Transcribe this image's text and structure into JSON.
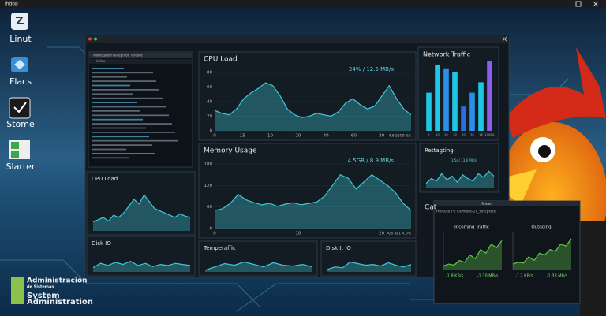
{
  "topbar": {
    "title": "lhdop"
  },
  "desktop_icons": [
    "Linut",
    "Flacs",
    "Stome",
    "Slarter"
  ],
  "watermark": [
    "Administración",
    "de Sistemas",
    "System",
    "Administration"
  ],
  "terminal": {
    "title": "Workstation Dareproof, Terdaté",
    "tab": "Hellow"
  },
  "panels": [
    {
      "title": "CPU Load",
      "label": "24% / 12.5 MB/s",
      "note": "4.6.5500 B/s",
      "ylim": [
        0,
        80
      ],
      "yticks": [
        0,
        20,
        40,
        60,
        80
      ],
      "xticks": [
        "0",
        "15",
        "10",
        "20",
        "40",
        "60",
        "30"
      ],
      "color": "#3fc8d8",
      "values": [
        28,
        24,
        22,
        30,
        44,
        52,
        58,
        66,
        62,
        48,
        30,
        22,
        18,
        20,
        24,
        22,
        20,
        26,
        38,
        44,
        36,
        30,
        34,
        48,
        62,
        44,
        30,
        22
      ]
    },
    {
      "title": "Memory Usage",
      "label": "4.5GB / 8.9 MB/s",
      "note": "A/8 381 A.0%",
      "ylim": [
        0,
        180
      ],
      "yticks": [
        0,
        60,
        120,
        180
      ],
      "xticks": [
        "0",
        "10",
        "20"
      ],
      "color": "#3fc8d8",
      "values": [
        50,
        55,
        70,
        95,
        80,
        72,
        66,
        70,
        62,
        68,
        72,
        66,
        70,
        74,
        90,
        120,
        150,
        140,
        110,
        130,
        150,
        135,
        120,
        100,
        70,
        50
      ]
    },
    {
      "title": "Network Traffic",
      "type": "bar",
      "ylim": [
        0,
        100
      ],
      "categories": [
        "5",
        "10",
        "20",
        "30",
        "50",
        "30",
        "16",
        "1000%"
      ],
      "values": [
        55,
        95,
        90,
        85,
        35,
        55,
        70,
        100
      ],
      "colors": [
        "#1fc7e6",
        "#1fc7e6",
        "#2a8fe8",
        "#1fc7e6",
        "#2a6fe0",
        "#2a8fe8",
        "#1fc7e6",
        "#8a5cf0"
      ]
    },
    {
      "title": "Rettagting",
      "label": "1.5s / 13.6 MB/s",
      "ylim": [
        0,
        100
      ],
      "color": "#3fc8d8",
      "values": [
        20,
        40,
        30,
        60,
        35,
        50,
        25,
        55,
        40,
        30,
        60,
        45,
        70,
        50
      ]
    },
    {
      "title": "CPU Load",
      "ylim": [
        0,
        100
      ],
      "color": "#3fc8d8",
      "values": [
        20,
        25,
        30,
        22,
        35,
        30,
        40,
        55,
        70,
        60,
        80,
        65,
        50,
        45,
        40,
        35,
        30,
        38,
        33,
        30
      ]
    },
    {
      "title": "Disk IO",
      "ylim": [
        0,
        100
      ],
      "color": "#3fc8d8",
      "values": [
        20,
        40,
        30,
        45,
        35,
        50,
        30,
        40,
        25,
        35,
        30,
        40,
        35,
        30
      ]
    },
    {
      "title": "Temperaffic",
      "ylim": [
        0,
        100
      ],
      "color": "#3fc8d8",
      "values": [
        10,
        30,
        50,
        40,
        60,
        45,
        30,
        55,
        40,
        35,
        45,
        30
      ]
    },
    {
      "title": "Disk It IO",
      "ylim": [
        0,
        100
      ],
      "color": "#3fc8d8",
      "values": [
        15,
        30,
        25,
        60,
        50,
        40,
        45,
        35,
        55,
        40,
        30,
        45
      ]
    }
  ],
  "popup": {
    "title": "Stieed",
    "tab": "Cat",
    "path": "fricoute (*) Camiere-21_sotcpfats",
    "panels": [
      {
        "title": "Incoming Traffic",
        "ylim": [
          0,
          100
        ],
        "color": "#5fc84a",
        "values": [
          10,
          15,
          12,
          25,
          20,
          40,
          30,
          55,
          45,
          70,
          60,
          80
        ],
        "left": "-1.8 KB/s",
        "right": "-1.30 MB/s"
      },
      {
        "title": "Outgoing",
        "ylim": [
          0,
          100
        ],
        "color": "#5fc84a",
        "values": [
          15,
          20,
          18,
          35,
          25,
          45,
          40,
          55,
          50,
          70,
          65,
          85
        ],
        "left": "-1.2 KB/s",
        "right": "-1.38 MB/s"
      }
    ]
  }
}
